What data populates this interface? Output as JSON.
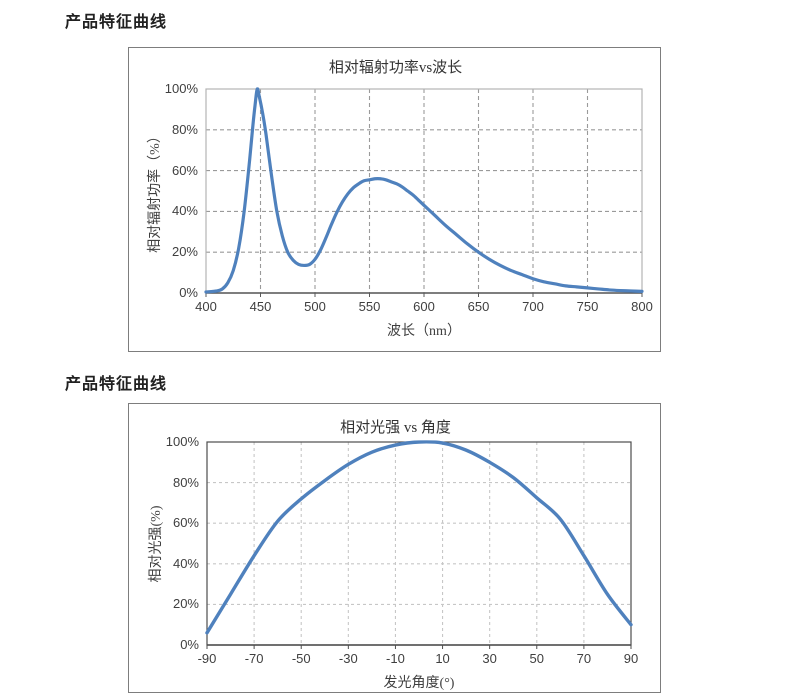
{
  "page": {
    "heading1": "产品特征曲线",
    "heading2": "产品特征曲线"
  },
  "colors": {
    "curve": "#4F81BD",
    "chart1_grid": "#9a9a9a",
    "chart1_frame": "#b3b3b3",
    "chart1_baseline": "#595959",
    "chart2_grid": "#c7c7c7",
    "chart2_frame": "#4d4d4d",
    "chart2_baseline": "#4d4d4d",
    "box_border": "#7d7d7d",
    "label_text": "#3f3f3f",
    "title_text": "#333333"
  },
  "chart_data": [
    {
      "type": "line",
      "title": "相对辐射功率vs波长",
      "xlabel": "波长（nm）",
      "ylabel": "相对辐射功率（%）",
      "xlim": [
        400,
        800
      ],
      "ylim": [
        0,
        100
      ],
      "x_ticks": [
        400,
        450,
        500,
        550,
        600,
        650,
        700,
        750,
        800
      ],
      "y_ticks": [
        0,
        20,
        40,
        60,
        80,
        100
      ],
      "y_tick_labels": [
        "0%",
        "20%",
        "40%",
        "60%",
        "80%",
        "100%"
      ],
      "grid": "dashed",
      "legend": false,
      "series": [
        {
          "name": "相对辐射功率",
          "x": [
            400,
            410,
            415,
            420,
            425,
            430,
            435,
            440,
            443,
            445,
            447,
            449,
            452,
            455,
            460,
            465,
            470,
            475,
            480,
            485,
            490,
            495,
            500,
            505,
            510,
            515,
            520,
            525,
            530,
            535,
            540,
            545,
            550,
            555,
            560,
            565,
            570,
            575,
            580,
            585,
            590,
            595,
            600,
            610,
            620,
            630,
            640,
            650,
            660,
            670,
            680,
            690,
            700,
            710,
            720,
            730,
            740,
            750,
            760,
            770,
            780,
            790,
            800
          ],
          "y": [
            0.5,
            1,
            2,
            5,
            11,
            22,
            40,
            65,
            82,
            92,
            100,
            96,
            88,
            78,
            58,
            40,
            28,
            20,
            16,
            14,
            13.5,
            14,
            16.5,
            21,
            27,
            33.5,
            39.5,
            44.5,
            48.5,
            51.5,
            53.5,
            55,
            55.5,
            56,
            56,
            55.5,
            54.5,
            53.5,
            52,
            50,
            48,
            45.5,
            43,
            38,
            33,
            28.5,
            24,
            20,
            16.5,
            13.5,
            11,
            9,
            7,
            5.5,
            4.5,
            3.5,
            3,
            2.5,
            2,
            1.5,
            1.2,
            1,
            0.8
          ]
        }
      ]
    },
    {
      "type": "line",
      "title": "相对光强 vs 角度",
      "xlabel": "发光角度(°)",
      "ylabel": "相对光强(%)",
      "xlim": [
        -90,
        90
      ],
      "ylim": [
        0,
        100
      ],
      "x_ticks": [
        -90,
        -70,
        -50,
        -30,
        -10,
        10,
        30,
        50,
        70,
        90
      ],
      "y_ticks": [
        0,
        20,
        40,
        60,
        80,
        100
      ],
      "y_tick_labels": [
        "0%",
        "20%",
        "40%",
        "60%",
        "80%",
        "100%"
      ],
      "grid": "dashed",
      "legend": false,
      "series": [
        {
          "name": "相对光强",
          "x": [
            -90,
            -80,
            -70,
            -60,
            -50,
            -40,
            -30,
            -20,
            -10,
            0,
            10,
            20,
            30,
            40,
            50,
            60,
            70,
            80,
            90
          ],
          "y": [
            6,
            25,
            44,
            61,
            72,
            81,
            89,
            95,
            98.5,
            100,
            99.5,
            96,
            90,
            82.5,
            72.5,
            62,
            44,
            25,
            10
          ]
        }
      ]
    }
  ]
}
